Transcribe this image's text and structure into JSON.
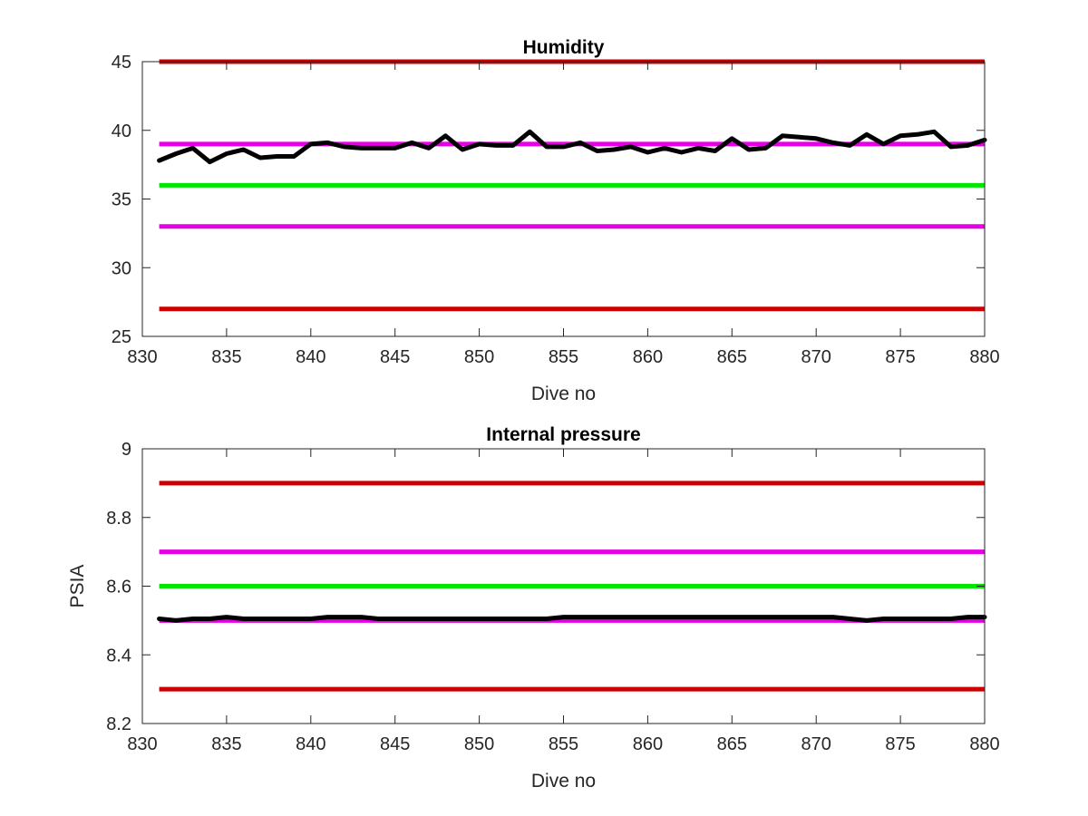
{
  "chart_data": [
    {
      "type": "line",
      "title": "Humidity",
      "xlabel": "Dive no",
      "ylabel": "",
      "xlim": [
        830,
        880
      ],
      "ylim": [
        25,
        45
      ],
      "xticks": [
        830,
        835,
        840,
        845,
        850,
        855,
        860,
        865,
        870,
        875,
        880
      ],
      "xtick_labels": [
        "830",
        "835",
        "840",
        "845",
        "850",
        "855",
        "860",
        "865",
        "870",
        "875",
        "880"
      ],
      "yticks": [
        25,
        30,
        35,
        40,
        45
      ],
      "ytick_labels": [
        "25",
        "30",
        "35",
        "40",
        "45"
      ],
      "grid": false,
      "reference_lines": [
        {
          "y": 45,
          "color": "#cc0000"
        },
        {
          "y": 39,
          "color": "#e600e6"
        },
        {
          "y": 36,
          "color": "#00e600"
        },
        {
          "y": 33,
          "color": "#e600e6"
        },
        {
          "y": 27,
          "color": "#cc0000"
        }
      ],
      "series": [
        {
          "color": "#000000",
          "x": [
            831,
            832,
            833,
            834,
            835,
            836,
            837,
            838,
            839,
            840,
            841,
            842,
            843,
            844,
            845,
            846,
            847,
            848,
            849,
            850,
            851,
            852,
            853,
            854,
            855,
            856,
            857,
            858,
            859,
            860,
            861,
            862,
            863,
            864,
            865,
            866,
            867,
            868,
            869,
            870,
            871,
            872,
            873,
            874,
            875,
            876,
            877,
            878,
            879,
            880
          ],
          "values": [
            37.8,
            38.3,
            38.7,
            37.7,
            38.3,
            38.6,
            38.0,
            38.1,
            38.1,
            39.0,
            39.1,
            38.8,
            38.7,
            38.7,
            38.7,
            39.1,
            38.7,
            39.6,
            38.6,
            39.0,
            38.9,
            38.9,
            39.9,
            38.8,
            38.8,
            39.1,
            38.5,
            38.6,
            38.8,
            38.4,
            38.7,
            38.4,
            38.7,
            38.5,
            39.4,
            38.6,
            38.7,
            39.6,
            39.5,
            39.4,
            39.1,
            38.9,
            39.7,
            39.0,
            39.6,
            39.7,
            39.9,
            38.8,
            38.9,
            39.3
          ]
        }
      ]
    },
    {
      "type": "line",
      "title": "Internal pressure",
      "xlabel": "Dive no",
      "ylabel": "PSIA",
      "xlim": [
        830,
        880
      ],
      "ylim": [
        8.2,
        9.0
      ],
      "xticks": [
        830,
        835,
        840,
        845,
        850,
        855,
        860,
        865,
        870,
        875,
        880
      ],
      "xtick_labels": [
        "830",
        "835",
        "840",
        "845",
        "850",
        "855",
        "860",
        "865",
        "870",
        "875",
        "880"
      ],
      "yticks": [
        8.2,
        8.4,
        8.6,
        8.8,
        9.0
      ],
      "ytick_labels": [
        "8.2",
        "8.4",
        "8.6",
        "8.8",
        "9"
      ],
      "grid": false,
      "reference_lines": [
        {
          "y": 8.9,
          "color": "#cc0000"
        },
        {
          "y": 8.7,
          "color": "#e600e6"
        },
        {
          "y": 8.6,
          "color": "#00e600"
        },
        {
          "y": 8.5,
          "color": "#e600e6"
        },
        {
          "y": 8.3,
          "color": "#cc0000"
        }
      ],
      "series": [
        {
          "color": "#000000",
          "x": [
            831,
            832,
            833,
            834,
            835,
            836,
            837,
            838,
            839,
            840,
            841,
            842,
            843,
            844,
            845,
            846,
            847,
            848,
            849,
            850,
            851,
            852,
            853,
            854,
            855,
            856,
            857,
            858,
            859,
            860,
            861,
            862,
            863,
            864,
            865,
            866,
            867,
            868,
            869,
            870,
            871,
            872,
            873,
            874,
            875,
            876,
            877,
            878,
            879,
            880
          ],
          "values": [
            8.505,
            8.5,
            8.505,
            8.505,
            8.51,
            8.505,
            8.505,
            8.505,
            8.505,
            8.505,
            8.51,
            8.51,
            8.51,
            8.505,
            8.505,
            8.505,
            8.505,
            8.505,
            8.505,
            8.505,
            8.505,
            8.505,
            8.505,
            8.505,
            8.51,
            8.51,
            8.51,
            8.51,
            8.51,
            8.51,
            8.51,
            8.51,
            8.51,
            8.51,
            8.51,
            8.51,
            8.51,
            8.51,
            8.51,
            8.51,
            8.51,
            8.505,
            8.5,
            8.505,
            8.505,
            8.505,
            8.505,
            8.505,
            8.51,
            8.51
          ]
        }
      ]
    }
  ]
}
